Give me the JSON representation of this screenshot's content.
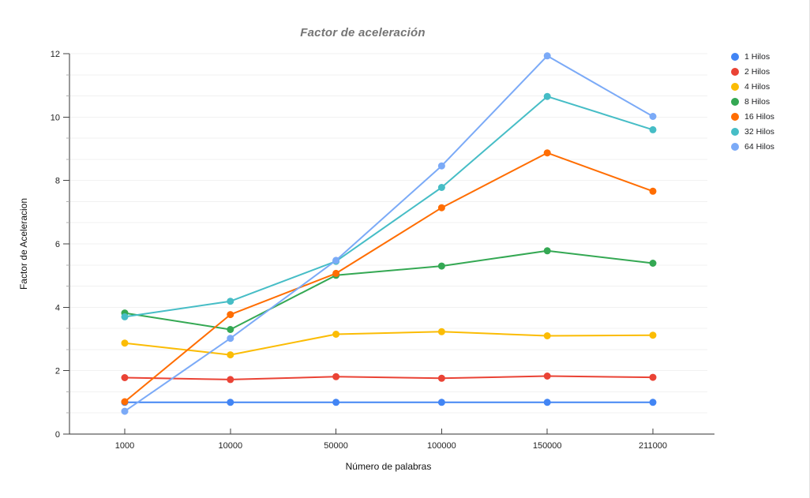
{
  "chart": {
    "title": "Factor de aceleración",
    "x_title": "Número de palabras",
    "y_title": "Factor de Aceleracion"
  },
  "chart_data": {
    "type": "line",
    "title": "Factor de aceleración",
    "xlabel": "Número de palabras",
    "ylabel": "Factor de Aceleracion",
    "categories": [
      "1000",
      "10000",
      "50000",
      "100000",
      "150000",
      "211000"
    ],
    "ylim": [
      0,
      12
    ],
    "yticks": [
      0,
      2,
      4,
      6,
      8,
      10,
      12
    ],
    "minor_grid_step": 0.6666667,
    "grid": "horizontal",
    "legend_position": "right",
    "marker": "circle",
    "series": [
      {
        "name": "1 Hilos",
        "color": "#4285F4",
        "values": [
          1.0,
          1.0,
          1.0,
          1.0,
          1.0,
          1.0
        ]
      },
      {
        "name": "2 Hilos",
        "color": "#EA4335",
        "values": [
          1.78,
          1.72,
          1.81,
          1.76,
          1.83,
          1.79
        ]
      },
      {
        "name": "4 Hilos",
        "color": "#FBBC04",
        "values": [
          2.87,
          2.5,
          3.15,
          3.23,
          3.1,
          3.12
        ]
      },
      {
        "name": "8 Hilos",
        "color": "#34A853",
        "values": [
          3.82,
          3.3,
          5.01,
          5.3,
          5.78,
          5.39
        ]
      },
      {
        "name": "16 Hilos",
        "color": "#FF6D01",
        "values": [
          1.02,
          3.77,
          5.07,
          7.14,
          8.87,
          7.66
        ]
      },
      {
        "name": "32 Hilos",
        "color": "#46BDC6",
        "values": [
          3.7,
          4.19,
          5.45,
          7.78,
          10.65,
          9.6
        ]
      },
      {
        "name": "64 Hilos",
        "color": "#7BAAF7",
        "values": [
          0.72,
          3.02,
          5.48,
          8.46,
          11.93,
          10.02
        ]
      }
    ],
    "style_colors": {
      "title": "#757575",
      "axis_line": "#333333",
      "major_tick": "#424242",
      "minor_tick": "#b0b0b0",
      "gridline": "#f1f1f1",
      "tick_label": "#222222"
    }
  }
}
